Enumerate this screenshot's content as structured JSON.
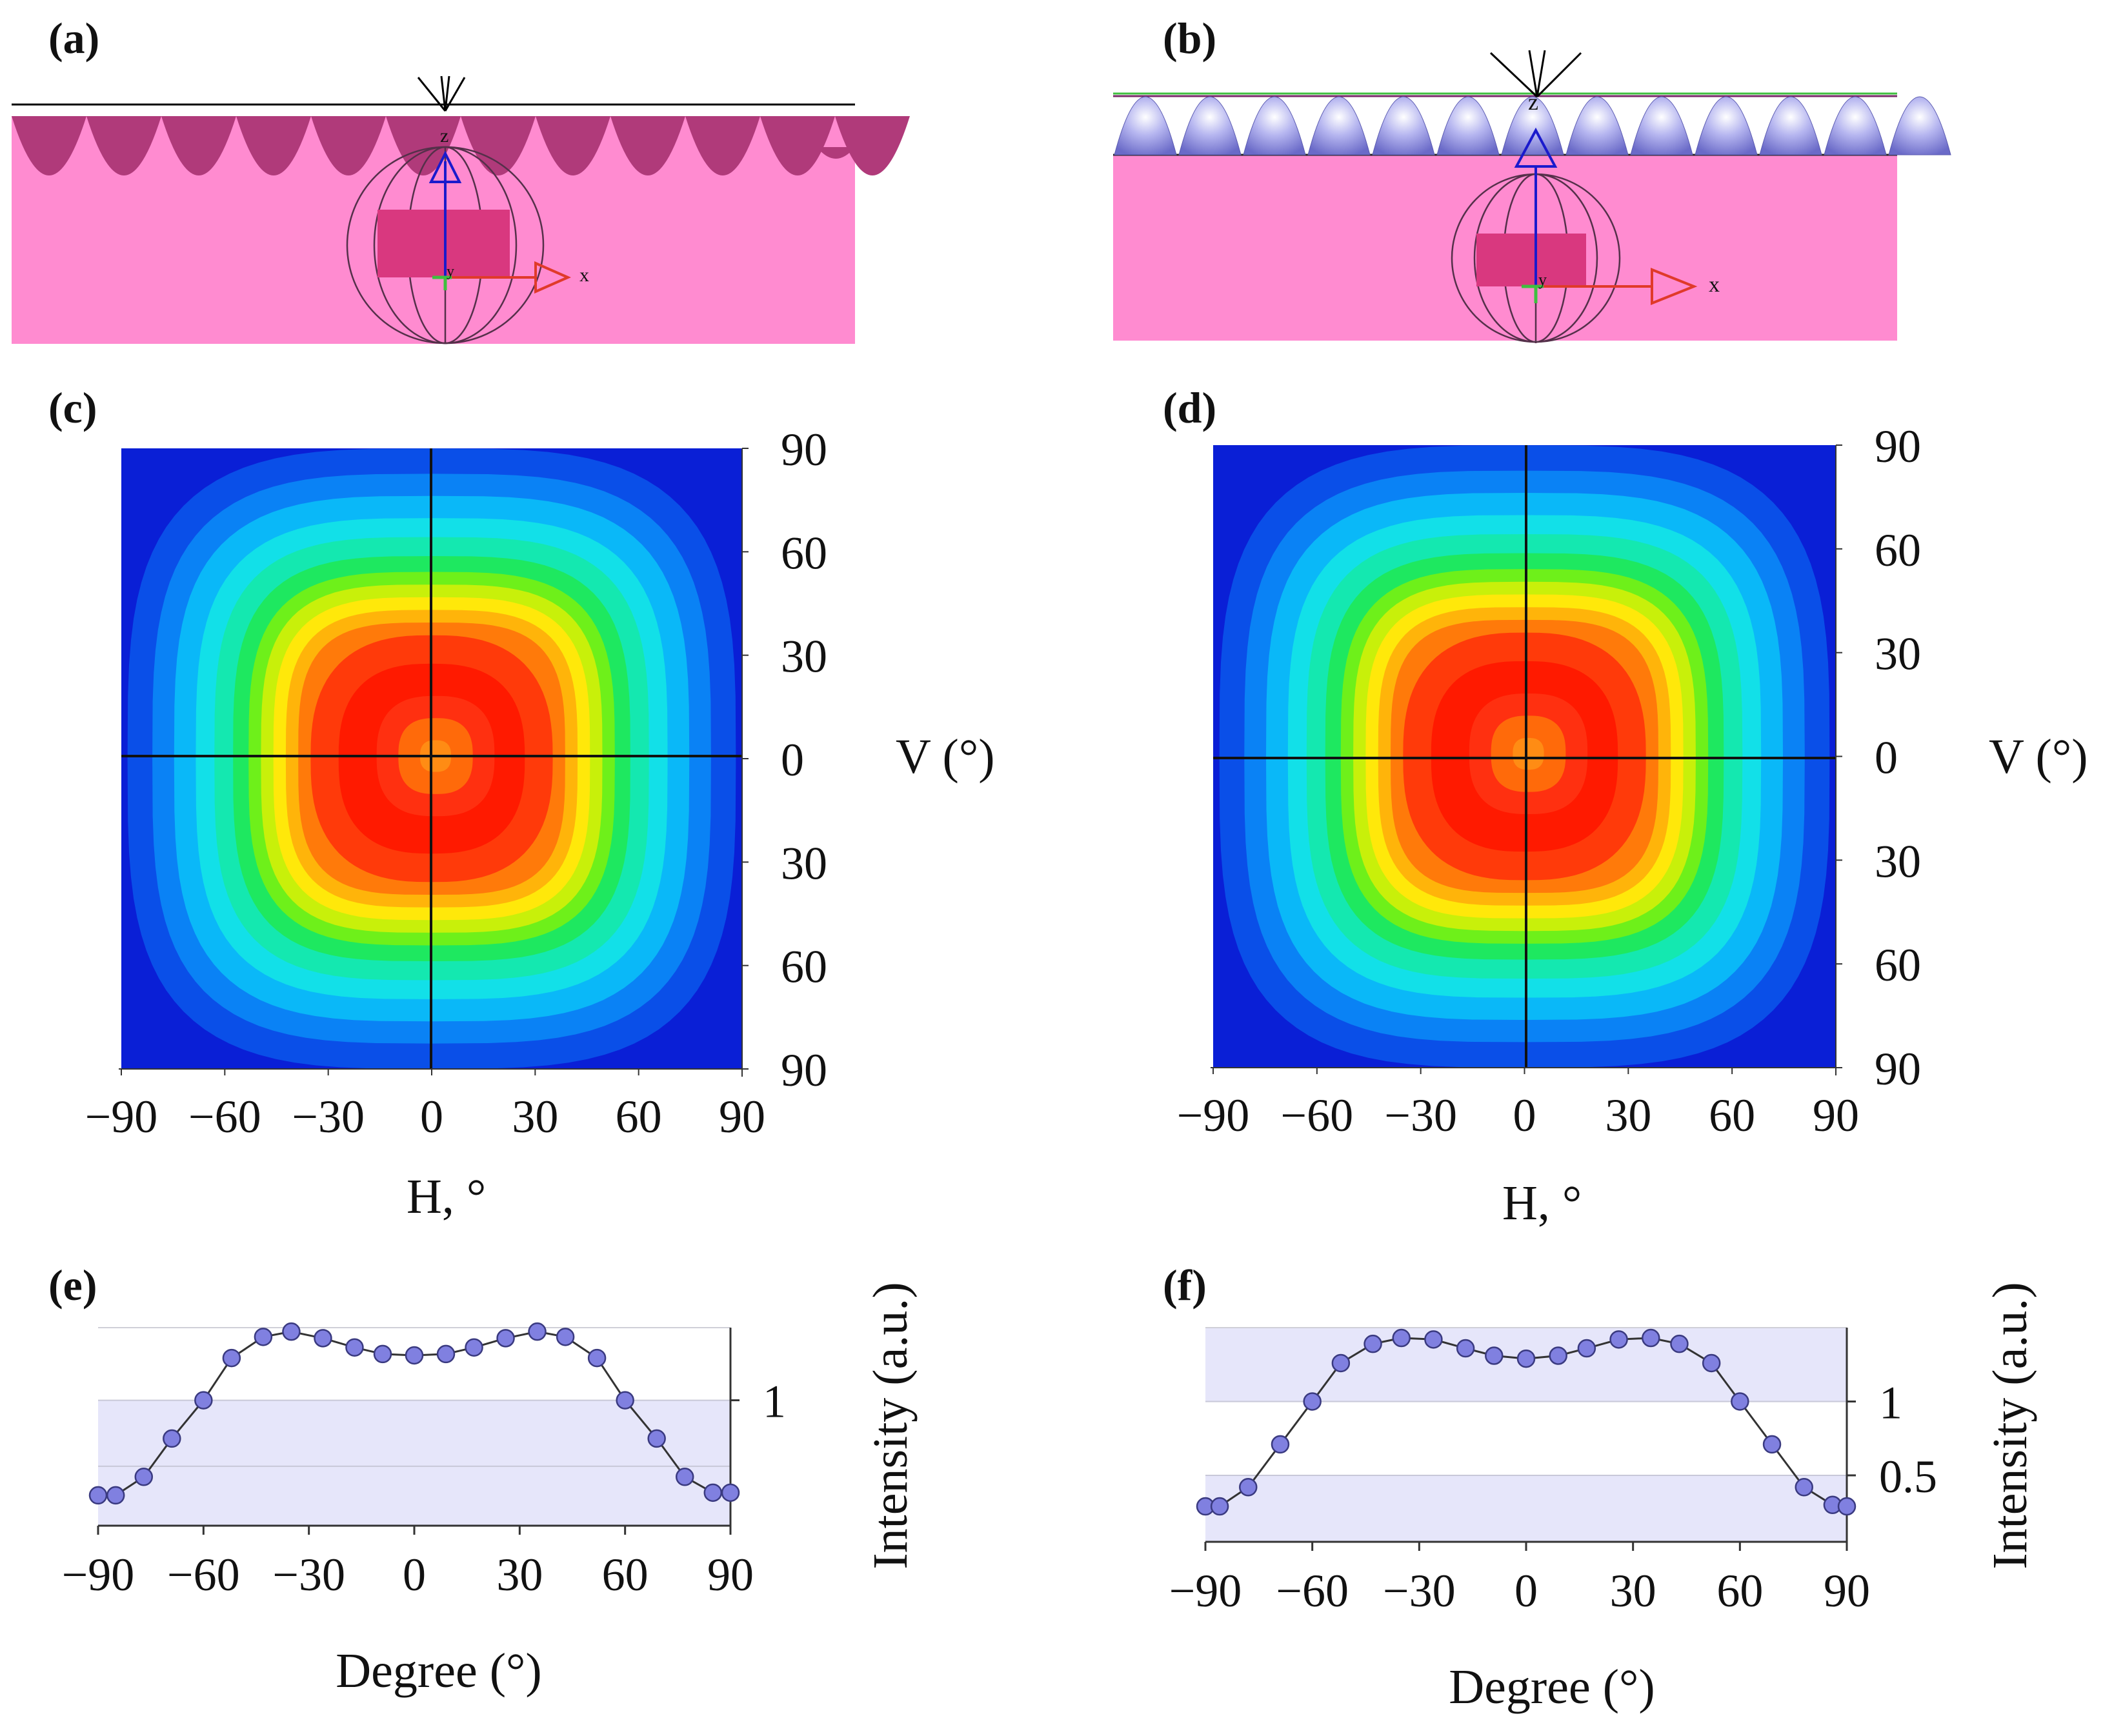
{
  "panels": {
    "a": {
      "label": "(a)",
      "axis_x": "x",
      "axis_z": "z",
      "axis_y": "y"
    },
    "b": {
      "label": "(b)",
      "axis_x": "x",
      "axis_z": "z",
      "axis_y": "y"
    },
    "c": {
      "label": "(c)",
      "h_ticks": [
        "−90",
        "−60",
        "−30",
        "0",
        "30",
        "60",
        "90"
      ],
      "v_ticks": [
        "90",
        "60",
        "30",
        "0",
        "30",
        "60",
        "90"
      ],
      "h_title": "H, °",
      "v_title": "V (°)"
    },
    "d": {
      "label": "(d)",
      "h_ticks": [
        "−90",
        "−60",
        "−30",
        "0",
        "30",
        "60",
        "90"
      ],
      "v_ticks": [
        "90",
        "60",
        "30",
        "0",
        "30",
        "60",
        "90"
      ],
      "h_title": "H, °",
      "v_title": "V (°)"
    },
    "e": {
      "label": "(e)",
      "x_ticks": [
        "−90",
        "−60",
        "−30",
        "0",
        "30",
        "60",
        "90"
      ],
      "y_ticks": [
        "1"
      ],
      "xlabel": "Degree (°)",
      "ylabel": "Intensity (a.u.)"
    },
    "f": {
      "label": "(f)",
      "x_ticks": [
        "−90",
        "−60",
        "−30",
        "0",
        "30",
        "60",
        "90"
      ],
      "y_ticks": [
        "1",
        "0.5"
      ],
      "xlabel": "Degree (°)",
      "ylabel": "Intensity (a.u.)"
    }
  },
  "colors": {
    "substrate": "#ff8bd0",
    "concave_lens": "#b03a7a",
    "convex_lens": "#8f8fe0",
    "chip": "#d9387f",
    "axis_z": "#1a1acc",
    "axis_x": "#e03a2a",
    "band": "#e6e6fa",
    "marker": "#8080e0"
  },
  "chart_data": [
    {
      "panel": "e",
      "type": "line",
      "x": [
        -90,
        -85,
        -77,
        -69,
        -60,
        -52,
        -43,
        -35,
        -26,
        -17,
        -9,
        0,
        9,
        17,
        26,
        35,
        43,
        52,
        60,
        69,
        77,
        85,
        90
      ],
      "y": [
        0.28,
        0.28,
        0.42,
        0.71,
        1.0,
        1.32,
        1.48,
        1.52,
        1.47,
        1.4,
        1.35,
        1.34,
        1.35,
        1.4,
        1.47,
        1.52,
        1.48,
        1.32,
        1.0,
        0.71,
        0.42,
        0.3,
        0.3
      ],
      "xlim": [
        -90,
        90
      ],
      "ylim": [
        0.05,
        1.55
      ],
      "bands": [
        [
          0.05,
          1.0
        ]
      ],
      "xlabel": "Degree (°)",
      "ylabel": "Intensity (a.u.)"
    },
    {
      "panel": "f",
      "type": "line",
      "x": [
        -90,
        -86,
        -78,
        -69,
        -60,
        -52,
        -43,
        -35,
        -26,
        -17,
        -9,
        0,
        9,
        17,
        26,
        35,
        43,
        52,
        60,
        69,
        78,
        86,
        90
      ],
      "y": [
        0.29,
        0.29,
        0.42,
        0.71,
        1.0,
        1.26,
        1.39,
        1.43,
        1.42,
        1.36,
        1.31,
        1.29,
        1.31,
        1.36,
        1.42,
        1.43,
        1.39,
        1.26,
        1.0,
        0.71,
        0.42,
        0.3,
        0.29
      ],
      "xlim": [
        -90,
        90
      ],
      "ylim": [
        0.05,
        1.5
      ],
      "bands": [
        [
          0.05,
          0.5
        ],
        [
          1.0,
          1.5
        ]
      ],
      "xlabel": "Degree (°)",
      "ylabel": "Intensity (a.u.)"
    }
  ]
}
